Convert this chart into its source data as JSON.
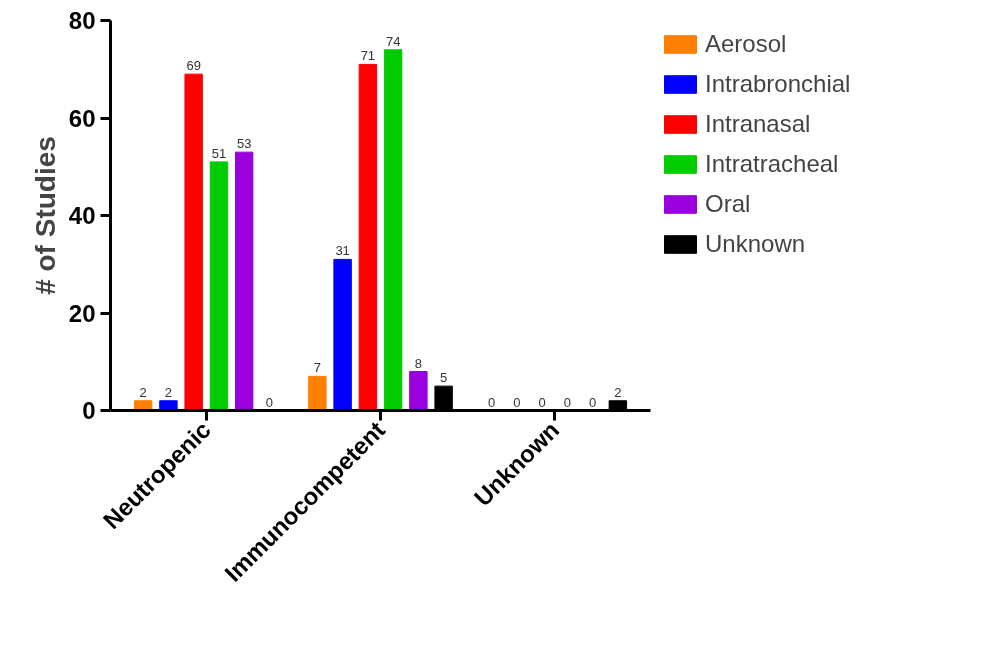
{
  "chart_data": {
    "type": "bar",
    "ylabel": "# of Studies",
    "categories": [
      "Neutropenic",
      "Immunocompetent",
      "Unknown"
    ],
    "series": [
      {
        "name": "Aerosol",
        "color": "#ff8000",
        "values": [
          2,
          7,
          0
        ]
      },
      {
        "name": "Intrabronchial",
        "color": "#0000ff",
        "values": [
          2,
          31,
          0
        ]
      },
      {
        "name": "Intranasal",
        "color": "#ff0000",
        "values": [
          69,
          71,
          0
        ]
      },
      {
        "name": "Intratracheal",
        "color": "#00cc00",
        "values": [
          51,
          74,
          0
        ]
      },
      {
        "name": "Oral",
        "color": "#9900dd",
        "values": [
          53,
          8,
          0
        ]
      },
      {
        "name": "Unknown",
        "color": "#000000",
        "values": [
          0,
          5,
          2
        ]
      }
    ],
    "ylim": [
      0,
      80
    ],
    "yticks": [
      0,
      20,
      40,
      60,
      80
    ],
    "data_labels": true,
    "legend": "right",
    "grid": false
  }
}
